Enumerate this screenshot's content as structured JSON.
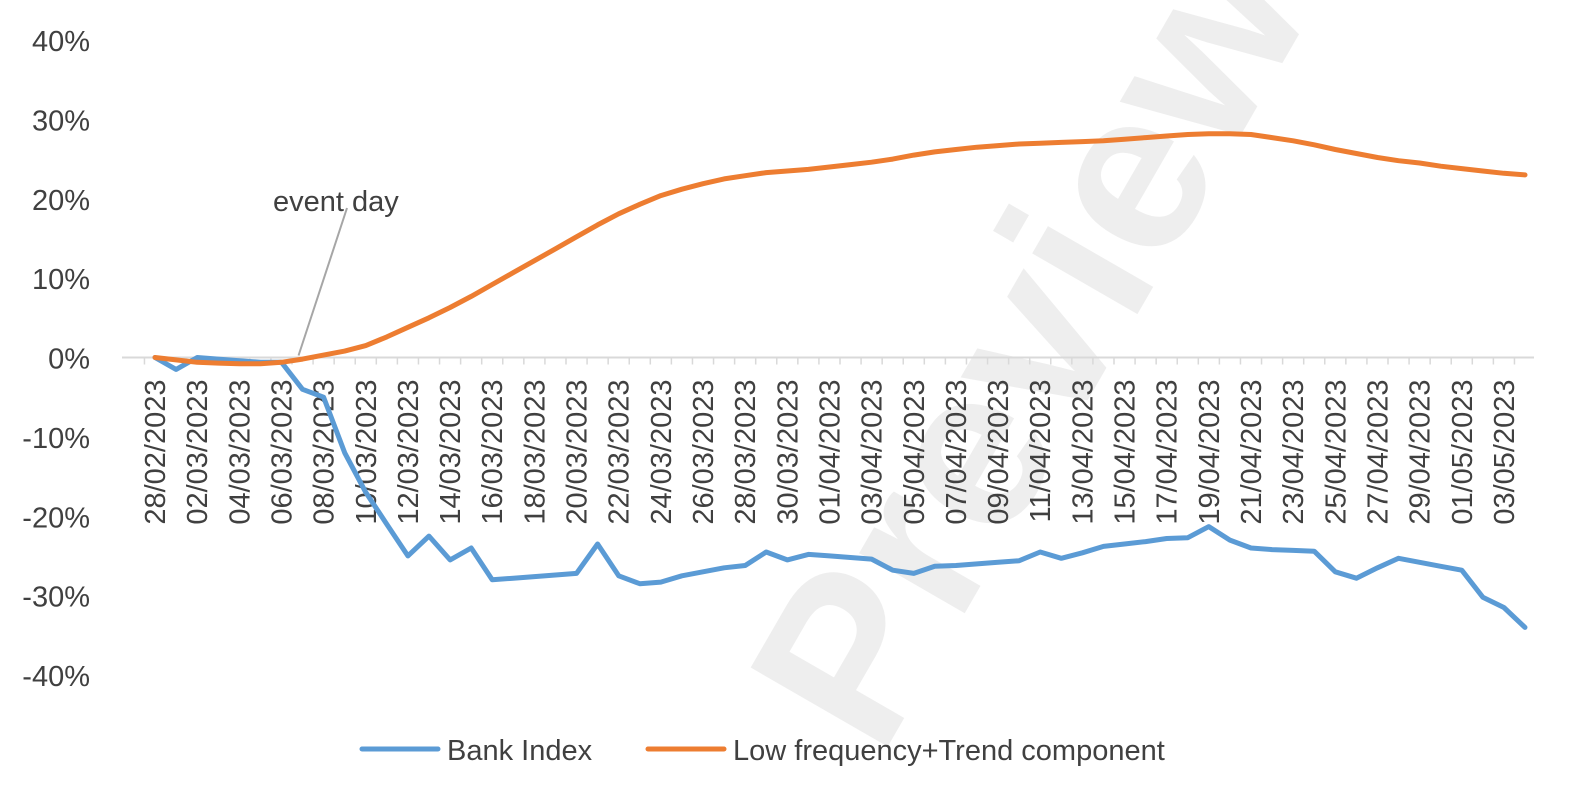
{
  "chart_data": {
    "type": "line",
    "title": "",
    "xlabel": "",
    "ylabel": "",
    "ylim": [
      -40,
      40
    ],
    "y_ticks": [
      "40%",
      "30%",
      "20%",
      "10%",
      "0%",
      "-10%",
      "-20%",
      "-30%",
      "-40%"
    ],
    "y_tick_values": [
      40,
      30,
      20,
      10,
      0,
      -10,
      -20,
      -30,
      -40
    ],
    "x": [
      "28/02/2023",
      "01/03/2023",
      "02/03/2023",
      "03/03/2023",
      "04/03/2023",
      "05/03/2023",
      "06/03/2023",
      "07/03/2023",
      "08/03/2023",
      "09/03/2023",
      "10/03/2023",
      "11/03/2023",
      "12/03/2023",
      "13/03/2023",
      "14/03/2023",
      "15/03/2023",
      "16/03/2023",
      "17/03/2023",
      "18/03/2023",
      "19/03/2023",
      "20/03/2023",
      "21/03/2023",
      "22/03/2023",
      "23/03/2023",
      "24/03/2023",
      "25/03/2023",
      "26/03/2023",
      "27/03/2023",
      "28/03/2023",
      "29/03/2023",
      "30/03/2023",
      "31/03/2023",
      "01/04/2023",
      "02/04/2023",
      "03/04/2023",
      "04/04/2023",
      "05/04/2023",
      "06/04/2023",
      "07/04/2023",
      "08/04/2023",
      "09/04/2023",
      "10/04/2023",
      "11/04/2023",
      "12/04/2023",
      "13/04/2023",
      "14/04/2023",
      "15/04/2023",
      "16/04/2023",
      "17/04/2023",
      "18/04/2023",
      "19/04/2023",
      "20/04/2023",
      "21/04/2023",
      "22/04/2023",
      "23/04/2023",
      "24/04/2023",
      "25/04/2023",
      "26/04/2023",
      "27/04/2023",
      "28/04/2023",
      "29/04/2023",
      "30/04/2023",
      "01/05/2023",
      "02/05/2023",
      "03/05/2023",
      "04/05/2023"
    ],
    "x_tick_labels": [
      "28/02/2023",
      "02/03/2023",
      "04/03/2023",
      "06/03/2023",
      "08/03/2023",
      "10/03/2023",
      "12/03/2023",
      "14/03/2023",
      "16/03/2023",
      "18/03/2023",
      "20/03/2023",
      "22/03/2023",
      "24/03/2023",
      "26/03/2023",
      "28/03/2023",
      "30/03/2023",
      "01/04/2023",
      "03/04/2023",
      "05/04/2023",
      "07/04/2023",
      "09/04/2023",
      "11/04/2023",
      "13/04/2023",
      "15/04/2023",
      "17/04/2023",
      "19/04/2023",
      "21/04/2023",
      "23/04/2023",
      "25/04/2023",
      "27/04/2023",
      "29/04/2023",
      "01/05/2023",
      "03/05/2023"
    ],
    "series": [
      {
        "name": "Bank Index",
        "color": "#5b9bd5",
        "values": [
          0.0,
          -1.5,
          0.0,
          -0.2,
          -0.4,
          -0.6,
          -0.6,
          -4.0,
          -5.0,
          -12.0,
          -17.0,
          -21.0,
          -25.0,
          -22.5,
          -25.5,
          -24.0,
          -28.0,
          -27.8,
          -27.6,
          -27.4,
          -27.2,
          -23.5,
          -27.5,
          -28.5,
          -28.3,
          -27.5,
          -27.0,
          -26.5,
          -26.2,
          -24.5,
          -25.5,
          -24.8,
          -25.0,
          -25.2,
          -25.4,
          -26.8,
          -27.2,
          -26.3,
          -26.2,
          -26.0,
          -25.8,
          -25.6,
          -24.5,
          -25.3,
          -24.6,
          -23.8,
          -23.5,
          -23.2,
          -22.8,
          -22.7,
          -21.3,
          -23.0,
          -24.0,
          -24.2,
          -24.3,
          -24.4,
          -27.0,
          -27.8,
          -26.5,
          -25.3,
          -25.8,
          -26.3,
          -26.8,
          -30.2,
          -31.5,
          -34.0
        ]
      },
      {
        "name": "Low frequency+Trend component",
        "color": "#ed7d31",
        "values": [
          0.0,
          -0.3,
          -0.6,
          -0.7,
          -0.8,
          -0.8,
          -0.6,
          -0.2,
          0.3,
          0.8,
          1.5,
          2.6,
          3.8,
          5.0,
          6.3,
          7.7,
          9.2,
          10.7,
          12.2,
          13.7,
          15.2,
          16.7,
          18.1,
          19.3,
          20.4,
          21.2,
          21.9,
          22.5,
          22.9,
          23.3,
          23.5,
          23.7,
          24.0,
          24.3,
          24.6,
          25.0,
          25.5,
          25.9,
          26.2,
          26.5,
          26.7,
          26.9,
          27.0,
          27.1,
          27.2,
          27.3,
          27.5,
          27.7,
          27.9,
          28.1,
          28.2,
          28.2,
          28.1,
          27.7,
          27.3,
          26.8,
          26.2,
          25.7,
          25.2,
          24.8,
          24.5,
          24.1,
          23.8,
          23.5,
          23.2,
          23.0
        ]
      }
    ],
    "annotations": [
      {
        "text": "event day",
        "date": "07/03/2023",
        "value": 0.0
      }
    ],
    "legend": {
      "position": "bottom",
      "entries": [
        "Bank Index",
        "Low frequency+Trend component"
      ]
    },
    "grid": false,
    "watermark": "Preview",
    "axis_color": "#d9d9d9",
    "text_color": "#404040",
    "leader_color": "#a6a6a6"
  }
}
